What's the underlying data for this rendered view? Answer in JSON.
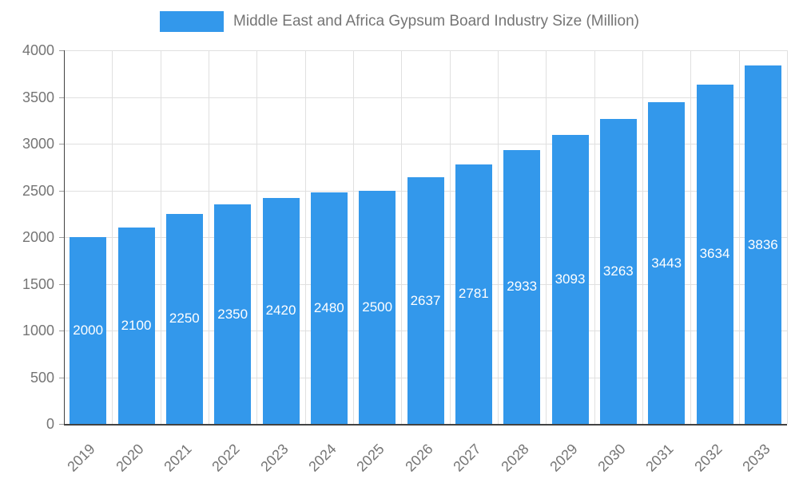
{
  "chart_data": {
    "type": "bar",
    "title": "Middle East and Africa Gypsum Board Industry Size (Million)",
    "categories": [
      "2019",
      "2020",
      "2021",
      "2022",
      "2023",
      "2024",
      "2025",
      "2026",
      "2027",
      "2028",
      "2029",
      "2030",
      "2031",
      "2032",
      "2033"
    ],
    "values": [
      2000,
      2100,
      2250,
      2350,
      2420,
      2480,
      2500,
      2637,
      2781,
      2933,
      3093,
      3263,
      3443,
      3634,
      3836
    ],
    "value_labels": [
      "2000",
      "2100",
      "2250",
      "2350",
      "2420",
      "2480",
      "2500",
      "2637",
      "2781",
      "2933",
      "3093",
      "3263",
      "3443",
      "3634",
      "3836"
    ],
    "xlabel": "",
    "ylabel": "",
    "ylim": [
      0,
      4000
    ],
    "yticks": [
      0,
      500,
      1000,
      1500,
      2000,
      2500,
      3000,
      3500,
      4000
    ],
    "grid": true,
    "legend_position": "top",
    "bar_color": "#3398EB",
    "value_label_color": "#ffffff",
    "axis_text_color": "#757575",
    "gridline_color": "#e0e0e0",
    "axis_line_color": "#424242",
    "background_color": "#ffffff"
  }
}
